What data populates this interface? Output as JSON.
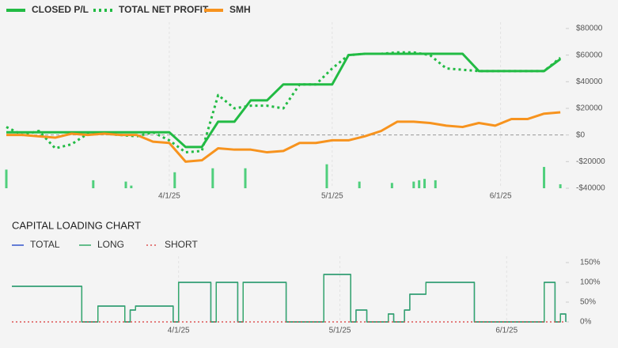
{
  "chart_data": [
    {
      "type": "line",
      "x": [
        "2025-03-02",
        "2025-03-05",
        "2025-03-08",
        "2025-03-11",
        "2025-03-14",
        "2025-03-17",
        "2025-03-20",
        "2025-03-23",
        "2025-03-26",
        "2025-03-29",
        "2025-04-01",
        "2025-04-04",
        "2025-04-07",
        "2025-04-10",
        "2025-04-13",
        "2025-04-16",
        "2025-04-19",
        "2025-04-22",
        "2025-04-25",
        "2025-04-28",
        "2025-05-01",
        "2025-05-04",
        "2025-05-07",
        "2025-05-10",
        "2025-05-13",
        "2025-05-16",
        "2025-05-19",
        "2025-05-22",
        "2025-05-25",
        "2025-05-28",
        "2025-05-31",
        "2025-06-03",
        "2025-06-06",
        "2025-06-09",
        "2025-06-12"
      ],
      "series": [
        {
          "name": "CLOSED P/L",
          "color": "#22bb44",
          "dash": "solid",
          "values": [
            2000,
            2000,
            2000,
            2000,
            2000,
            2000,
            2000,
            2000,
            2000,
            2000,
            2000,
            -9000,
            -9000,
            10000,
            10000,
            26000,
            26000,
            38000,
            38000,
            38000,
            38000,
            60000,
            61000,
            61000,
            61000,
            61000,
            61000,
            61000,
            61000,
            48000,
            48000,
            48000,
            48000,
            48000,
            57000
          ]
        },
        {
          "name": "TOTAL NET PROFIT",
          "color": "#22bb44",
          "dash": "dotted",
          "values": [
            6000,
            0,
            3000,
            -10000,
            -7000,
            1000,
            1000,
            0,
            -1000,
            2000,
            -4000,
            -13000,
            -12000,
            30000,
            20000,
            22000,
            22000,
            20000,
            38000,
            38000,
            50000,
            60000,
            61000,
            61000,
            62000,
            62000,
            60000,
            50000,
            49000,
            48000,
            48000,
            48000,
            48000,
            48000,
            58000
          ]
        },
        {
          "name": "SMH",
          "color": "#f7931e",
          "dash": "solid",
          "values": [
            0,
            0,
            -1000,
            -2000,
            1000,
            0,
            1000,
            0,
            0,
            -5000,
            -6000,
            -20000,
            -19000,
            -10000,
            -11000,
            -11000,
            -13000,
            -12000,
            -6000,
            -6000,
            -4000,
            -4000,
            -1000,
            3000,
            10000,
            10000,
            9000,
            7000,
            6000,
            9000,
            7000,
            12000,
            12000,
            16000,
            17000
          ]
        }
      ],
      "bars": {
        "color": "#4fcf7c",
        "x": [
          "2025-03-02",
          "2025-03-18",
          "2025-03-24",
          "2025-03-25",
          "2025-04-02",
          "2025-04-09",
          "2025-04-15",
          "2025-04-30",
          "2025-05-06",
          "2025-05-12",
          "2025-05-16",
          "2025-05-17",
          "2025-05-18",
          "2025-05-20",
          "2025-06-09",
          "2025-06-12"
        ],
        "values": [
          14000,
          6000,
          5000,
          2000,
          12000,
          15000,
          15000,
          18000,
          5000,
          4000,
          5000,
          6000,
          7000,
          6000,
          16000,
          3000
        ]
      },
      "xlim": [
        "2025-03-02",
        "2025-06-13"
      ],
      "xticks": [
        {
          "value": "2025-04-01",
          "label": "4/1/25"
        },
        {
          "value": "2025-05-01",
          "label": "5/1/25"
        },
        {
          "value": "2025-06-01",
          "label": "6/1/25"
        }
      ],
      "ylim": [
        -40000,
        80000
      ],
      "yticks": [
        {
          "value": 80000,
          "label": "$80000"
        },
        {
          "value": 60000,
          "label": "$60000"
        },
        {
          "value": 40000,
          "label": "$40000"
        },
        {
          "value": 20000,
          "label": "$20000"
        },
        {
          "value": 0,
          "label": "$0"
        },
        {
          "value": -20000,
          "label": "-$20000"
        },
        {
          "value": -40000,
          "label": "-$40000"
        }
      ],
      "grid": "x",
      "zero_line": true,
      "step": false
    },
    {
      "type": "line",
      "title": "CAPITAL LOADING CHART",
      "x": [
        "2025-03-01",
        "2025-03-14",
        "2025-03-17",
        "2025-03-22",
        "2025-03-23",
        "2025-03-24",
        "2025-03-31",
        "2025-04-01",
        "2025-04-07",
        "2025-04-08",
        "2025-04-12",
        "2025-04-13",
        "2025-04-21",
        "2025-04-28",
        "2025-05-03",
        "2025-05-04",
        "2025-05-06",
        "2025-05-10",
        "2025-05-11",
        "2025-05-13",
        "2025-05-14",
        "2025-05-17",
        "2025-05-26",
        "2025-06-08",
        "2025-06-10",
        "2025-06-11",
        "2025-06-12"
      ],
      "series": [
        {
          "name": "TOTAL",
          "color": "#3355cc",
          "dash": "solid",
          "values": [
            90,
            0,
            40,
            0,
            30,
            40,
            0,
            100,
            0,
            100,
            0,
            100,
            0,
            120,
            0,
            30,
            0,
            20,
            0,
            30,
            70,
            100,
            0,
            100,
            0,
            20,
            0
          ]
        },
        {
          "name": "LONG",
          "color": "#33aa66",
          "dash": "solid",
          "values": [
            90,
            0,
            40,
            0,
            30,
            40,
            0,
            100,
            0,
            100,
            0,
            100,
            0,
            120,
            0,
            30,
            0,
            20,
            0,
            30,
            70,
            100,
            0,
            100,
            0,
            20,
            0
          ]
        },
        {
          "name": "SHORT",
          "color": "#dd5555",
          "dash": "dotted",
          "values": [
            0,
            0,
            0,
            0,
            0,
            0,
            0,
            0,
            0,
            0,
            0,
            0,
            0,
            0,
            0,
            0,
            0,
            0,
            0,
            0,
            0,
            0,
            0,
            0,
            0,
            0,
            0
          ]
        }
      ],
      "xlim": [
        "2025-03-01",
        "2025-06-12"
      ],
      "xticks": [
        {
          "value": "2025-04-01",
          "label": "4/1/25"
        },
        {
          "value": "2025-05-01",
          "label": "5/1/25"
        },
        {
          "value": "2025-06-01",
          "label": "6/1/25"
        }
      ],
      "ylim": [
        0,
        150
      ],
      "yticks": [
        {
          "value": 150,
          "label": "150%"
        },
        {
          "value": 100,
          "label": "100%"
        },
        {
          "value": 50,
          "label": "50%"
        },
        {
          "value": 0,
          "label": "0%"
        }
      ],
      "grid": "x",
      "zero_line": false,
      "step": true
    }
  ]
}
